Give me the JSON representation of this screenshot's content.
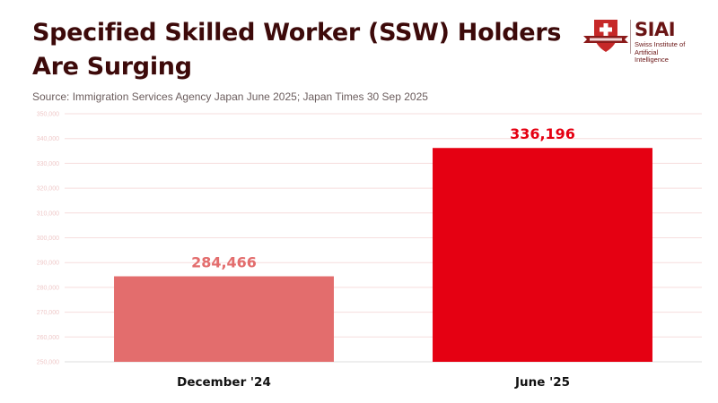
{
  "header": {
    "title": "Specified Skilled Worker (SSW) Holders Are Surging",
    "source": "Source: Immigration Services Agency Japan June 2025; Japan Times 30 Sep 2025"
  },
  "logo": {
    "wordmark": "SIAI",
    "subtitle_line1": "Swiss Institute of",
    "subtitle_line2": "Artificial Intelligence",
    "brand_color": "#9b1c1c"
  },
  "chart_data": {
    "type": "bar",
    "categories": [
      "December '24",
      "June '25"
    ],
    "values": [
      284466,
      336196
    ],
    "value_labels": [
      "284,466",
      "336,196"
    ],
    "colors": [
      "#e36d6d",
      "#e50012"
    ],
    "ylim": [
      250000,
      350000
    ],
    "yticks": [
      250000,
      260000,
      270000,
      280000,
      290000,
      300000,
      310000,
      320000,
      330000,
      340000,
      350000
    ],
    "ytick_labels": [
      "250,000",
      "260,000",
      "270,000",
      "280,000",
      "290,000",
      "300,000",
      "310,000",
      "320,000",
      "330,000",
      "340,000",
      "350,000"
    ],
    "grid": true,
    "xlabel": "",
    "ylabel": ""
  }
}
